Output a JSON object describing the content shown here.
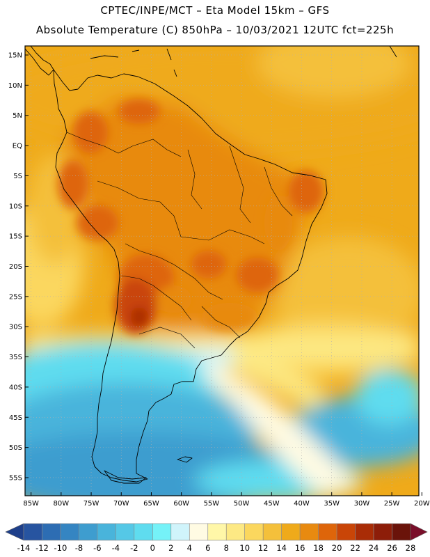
{
  "header": {
    "line1": "CPTEC/INPE/MCT –  Eta Model 15km – GFS",
    "line2": "Absolute Temperature (C) 850hPa – 10/03/2021 12UTC fct=225h"
  },
  "map": {
    "lat_labels": [
      "15N",
      "10N",
      "5N",
      "EQ",
      "5S",
      "10S",
      "15S",
      "20S",
      "25S",
      "30S",
      "35S",
      "40S",
      "45S",
      "50S",
      "55S"
    ],
    "lon_labels": [
      "85W",
      "80W",
      "75W",
      "70W",
      "65W",
      "60W",
      "55W",
      "50W",
      "45W",
      "40W",
      "35W",
      "30W",
      "25W",
      "20W"
    ],
    "lat_range": [
      -58,
      16.5
    ],
    "lon_range": [
      -86,
      -20.5
    ],
    "grid": "dotted"
  },
  "colorbar": {
    "levels": [
      "-14",
      "-12",
      "-10",
      "-8",
      "-6",
      "-4",
      "-2",
      "0",
      "2",
      "4",
      "6",
      "8",
      "10",
      "12",
      "14",
      "16",
      "18",
      "20",
      "22",
      "24",
      "26",
      "28"
    ],
    "colors": [
      "#1e3f8a",
      "#2754a0",
      "#2d6db3",
      "#3585c2",
      "#3e9dcf",
      "#49b4db",
      "#55c8e6",
      "#5fdcef",
      "#75f2f8",
      "#d0f4fb",
      "#fffbe3",
      "#fff7a8",
      "#fde984",
      "#fbd75e",
      "#f4c03b",
      "#efaa1a",
      "#e88a10",
      "#de650a",
      "#c94507",
      "#a92c06",
      "#8d1d09",
      "#6a130a",
      "#7a0f2a"
    ]
  }
}
